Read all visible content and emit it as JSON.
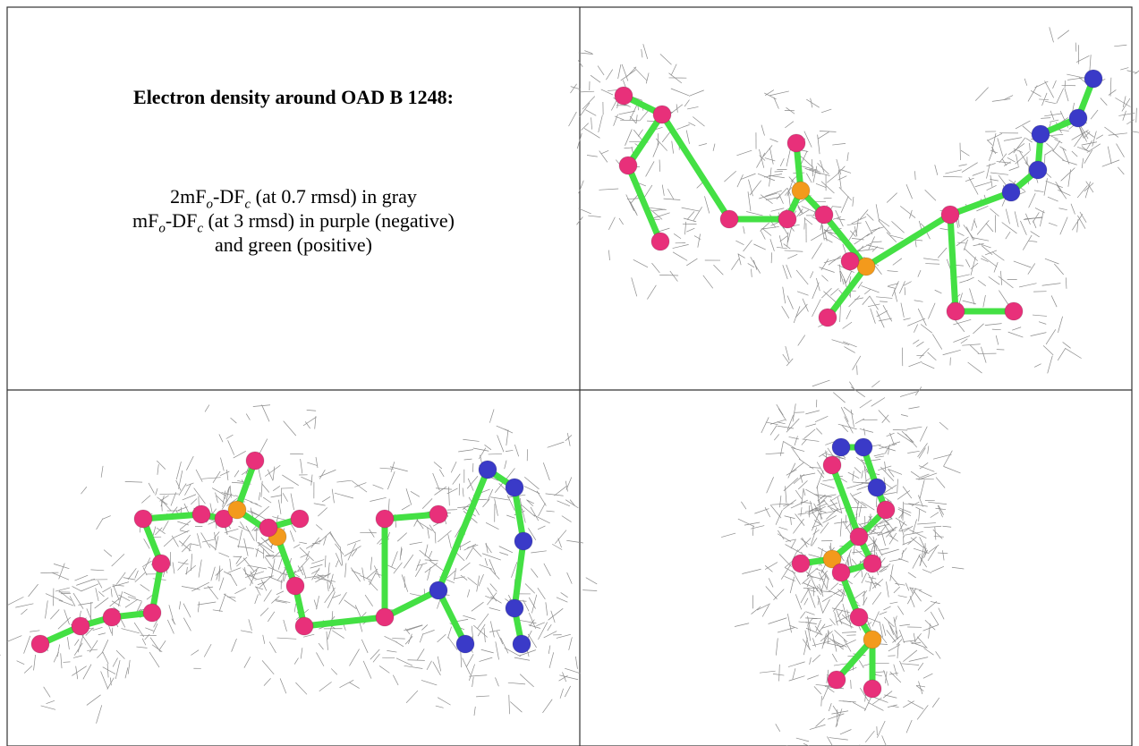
{
  "caption": {
    "title": "Electron density around OAD B 1248:",
    "lines": [
      [
        "2mF",
        "o",
        "-DF",
        "c",
        " (at 0.7 rmsd) in gray"
      ],
      [
        "mF",
        "o",
        "-DF",
        "c",
        " (at 3 rmsd) in purple (negative)"
      ],
      [
        "and green (positive)"
      ]
    ]
  }
}
